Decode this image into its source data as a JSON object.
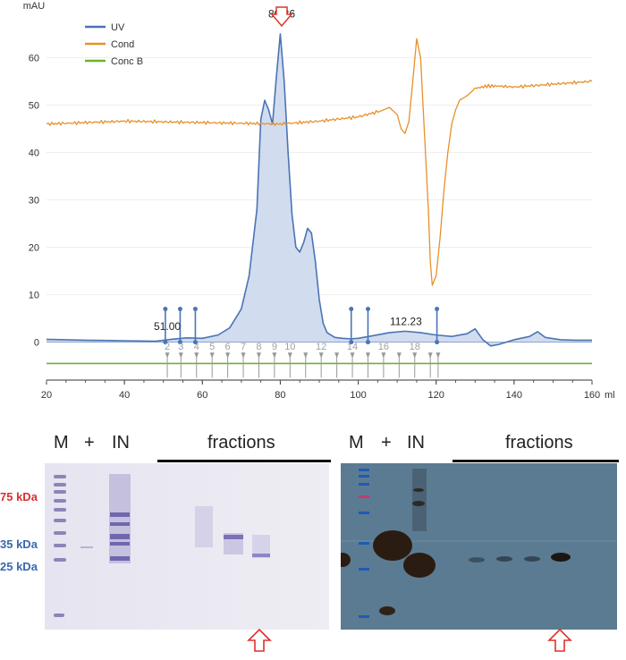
{
  "chart_data": {
    "type": "line",
    "x_unit": "ml",
    "y_unit": "mAU",
    "xlim": [
      20,
      160
    ],
    "ylim": [
      -8,
      68
    ],
    "x_ticks": [
      20,
      40,
      60,
      80,
      100,
      120,
      140,
      160
    ],
    "y_ticks": [
      0,
      10,
      20,
      30,
      40,
      50,
      60
    ],
    "legend": [
      "UV",
      "Cond",
      "Conc B"
    ],
    "legend_position": "top-left",
    "colors": {
      "UV": "#4a74b5",
      "UVFill": "#c9d6ec",
      "Cond": "#e8902a",
      "ConcB": "#6ab52a",
      "Arrow": "#e0312a"
    },
    "series": [
      {
        "name": "UV",
        "x": [
          20,
          30,
          40,
          48,
          52,
          56,
          60,
          64,
          67,
          70,
          72,
          74,
          75,
          76,
          77,
          78,
          79,
          80,
          81,
          82,
          83,
          84,
          85,
          86,
          87,
          88,
          89,
          90,
          91,
          92,
          94,
          96,
          98,
          100,
          104,
          108,
          112,
          116,
          120,
          124,
          128,
          130,
          132,
          134,
          136,
          140,
          144,
          146,
          148,
          152,
          156,
          160
        ],
        "y": [
          0.6,
          0.4,
          0.3,
          0.2,
          0.6,
          0.9,
          0.8,
          1.5,
          3,
          7,
          14,
          28,
          47,
          51,
          49,
          46,
          56,
          65,
          55,
          40,
          27,
          20,
          19,
          21,
          24,
          23,
          17,
          9,
          4,
          2,
          1,
          0.8,
          0.7,
          0.8,
          1.4,
          2,
          2.3,
          2,
          1.5,
          1.2,
          1.8,
          2.8,
          0.5,
          -0.8,
          -0.5,
          0.5,
          1.2,
          2.2,
          1.0,
          0.5,
          0.4,
          0.4
        ]
      },
      {
        "name": "Cond",
        "x": [
          20,
          40,
          60,
          80,
          90,
          100,
          106,
          108,
          110,
          111,
          112,
          113,
          114,
          115,
          116,
          117,
          118,
          118.5,
          119,
          120,
          121,
          122,
          123,
          124,
          125,
          126,
          128,
          130,
          133,
          136,
          140,
          150,
          160
        ],
        "y": [
          46,
          46.6,
          46.3,
          46,
          46.6,
          47.5,
          48.8,
          49.5,
          48,
          45,
          44,
          46.5,
          55,
          64,
          60,
          44,
          28,
          17,
          12,
          14,
          22,
          32,
          40,
          46,
          49,
          51,
          52,
          53.5,
          54,
          54,
          53.8,
          54.4,
          55
        ]
      },
      {
        "name": "Conc B",
        "x": [
          20,
          160
        ],
        "y": [
          -4.5,
          -4.5
        ]
      }
    ],
    "peak_labels": [
      {
        "x": 80.36,
        "text": "80.36"
      },
      {
        "x": 51.0,
        "text": "51.00"
      },
      {
        "x": 112.23,
        "text": "112.23"
      }
    ],
    "fraction_markers": [
      50.5,
      54.3,
      58.2,
      98.2,
      102.5,
      120.2
    ],
    "fraction_ticks": [
      51,
      54.5,
      58.5,
      62.5,
      66.5,
      70.5,
      74.5,
      78.5,
      82.5,
      86.5,
      90.5,
      94.5,
      98.5,
      102.5,
      106.5,
      110.5,
      114.5,
      118.5,
      120.5
    ],
    "fraction_labels": [
      {
        "x": 51,
        "text": "2"
      },
      {
        "x": 54.5,
        "text": "3"
      },
      {
        "x": 58.5,
        "text": "4"
      },
      {
        "x": 62.5,
        "text": "5"
      },
      {
        "x": 66.5,
        "text": "6"
      },
      {
        "x": 70.5,
        "text": "7"
      },
      {
        "x": 74.5,
        "text": "8"
      },
      {
        "x": 78.5,
        "text": "9"
      },
      {
        "x": 82.5,
        "text": "10"
      },
      {
        "x": 90.5,
        "text": "12"
      },
      {
        "x": 98.5,
        "text": "14"
      },
      {
        "x": 106.5,
        "text": "16"
      },
      {
        "x": 114.5,
        "text": "18"
      }
    ]
  },
  "gels": {
    "left": {
      "lanes": [
        "M",
        "+",
        "IN"
      ],
      "fractions_label": "fractions",
      "mw_markers": [
        {
          "text": "75 kDa",
          "color": "#d93030"
        },
        {
          "text": "35 kDa",
          "color": "#3b66b0"
        },
        {
          "text": "25 kDa",
          "color": "#3b66b0"
        }
      ]
    },
    "right": {
      "lanes": [
        "M",
        "+",
        "IN"
      ],
      "fractions_label": "fractions"
    }
  }
}
